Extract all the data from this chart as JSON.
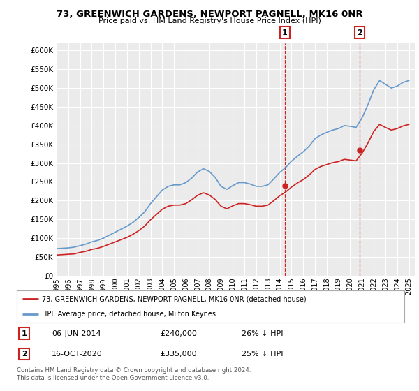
{
  "title": "73, GREENWICH GARDENS, NEWPORT PAGNELL, MK16 0NR",
  "subtitle": "Price paid vs. HM Land Registry's House Price Index (HPI)",
  "ylim": [
    0,
    620000
  ],
  "yticks": [
    0,
    50000,
    100000,
    150000,
    200000,
    250000,
    300000,
    350000,
    400000,
    450000,
    500000,
    550000,
    600000
  ],
  "xlim_start": 1995.0,
  "xlim_end": 2025.5,
  "background_color": "#ffffff",
  "plot_bg_color": "#ebebeb",
  "grid_color": "#ffffff",
  "hpi_color": "#6699cc",
  "price_color": "#cc2222",
  "marker_color": "#cc2222",
  "annotation_box_color": "#cc2222",
  "sale1": {
    "date_x": 2014.43,
    "price": 240000,
    "label": "1",
    "text": "06-JUN-2014",
    "amount": "£240,000",
    "hpi_pct": "26% ↓ HPI"
  },
  "sale2": {
    "date_x": 2020.79,
    "price": 335000,
    "label": "2",
    "text": "16-OCT-2020",
    "amount": "£335,000",
    "hpi_pct": "25% ↓ HPI"
  },
  "legend_entry1": "73, GREENWICH GARDENS, NEWPORT PAGNELL, MK16 0NR (detached house)",
  "legend_entry2": "HPI: Average price, detached house, Milton Keynes",
  "footnote": "Contains HM Land Registry data © Crown copyright and database right 2024.\nThis data is licensed under the Open Government Licence v3.0.",
  "hpi_data_x": [
    1995,
    1995.5,
    1996,
    1996.5,
    1997,
    1997.5,
    1998,
    1998.5,
    1999,
    1999.5,
    2000,
    2000.5,
    2001,
    2001.5,
    2002,
    2002.5,
    2003,
    2003.5,
    2004,
    2004.5,
    2005,
    2005.5,
    2006,
    2006.5,
    2007,
    2007.5,
    2008,
    2008.5,
    2009,
    2009.5,
    2010,
    2010.5,
    2011,
    2011.5,
    2012,
    2012.5,
    2013,
    2013.5,
    2014,
    2014.5,
    2015,
    2015.5,
    2016,
    2016.5,
    2017,
    2017.5,
    2018,
    2018.5,
    2019,
    2019.5,
    2020,
    2020.5,
    2021,
    2021.5,
    2022,
    2022.5,
    2023,
    2023.5,
    2024,
    2024.5,
    2025
  ],
  "hpi_data_y": [
    72000,
    73000,
    74000,
    76000,
    80000,
    84000,
    90000,
    94000,
    100000,
    108000,
    116000,
    124000,
    132000,
    142000,
    155000,
    170000,
    192000,
    210000,
    228000,
    238000,
    242000,
    242000,
    248000,
    260000,
    276000,
    285000,
    278000,
    262000,
    238000,
    230000,
    240000,
    248000,
    248000,
    244000,
    238000,
    238000,
    242000,
    258000,
    275000,
    288000,
    305000,
    318000,
    330000,
    345000,
    365000,
    375000,
    382000,
    388000,
    392000,
    400000,
    398000,
    395000,
    420000,
    455000,
    495000,
    520000,
    510000,
    500000,
    505000,
    515000,
    520000
  ],
  "price_data_x": [
    1995,
    1995.5,
    1996,
    1996.5,
    1997,
    1997.5,
    1998,
    1998.5,
    1999,
    1999.5,
    2000,
    2000.5,
    2001,
    2001.5,
    2002,
    2002.5,
    2003,
    2003.5,
    2004,
    2004.5,
    2005,
    2005.5,
    2006,
    2006.5,
    2007,
    2007.5,
    2008,
    2008.5,
    2009,
    2009.5,
    2010,
    2010.5,
    2011,
    2011.5,
    2012,
    2012.5,
    2013,
    2013.5,
    2014,
    2014.5,
    2015,
    2015.5,
    2016,
    2016.5,
    2017,
    2017.5,
    2018,
    2018.5,
    2019,
    2019.5,
    2020,
    2020.5,
    2021,
    2021.5,
    2022,
    2022.5,
    2023,
    2023.5,
    2024,
    2024.5,
    2025
  ],
  "price_data_y": [
    55000,
    56000,
    57000,
    58000,
    62000,
    65000,
    70000,
    73000,
    78000,
    84000,
    90000,
    96000,
    102000,
    110000,
    120000,
    132000,
    149000,
    163000,
    177000,
    185000,
    188000,
    188000,
    192000,
    202000,
    214000,
    221000,
    215000,
    203000,
    185000,
    178000,
    186000,
    192000,
    192000,
    189000,
    185000,
    185000,
    188000,
    200000,
    213000,
    223000,
    236000,
    247000,
    256000,
    268000,
    283000,
    291000,
    296000,
    301000,
    304000,
    310000,
    308000,
    306000,
    326000,
    353000,
    384000,
    403000,
    395000,
    388000,
    392000,
    399000,
    403000
  ]
}
